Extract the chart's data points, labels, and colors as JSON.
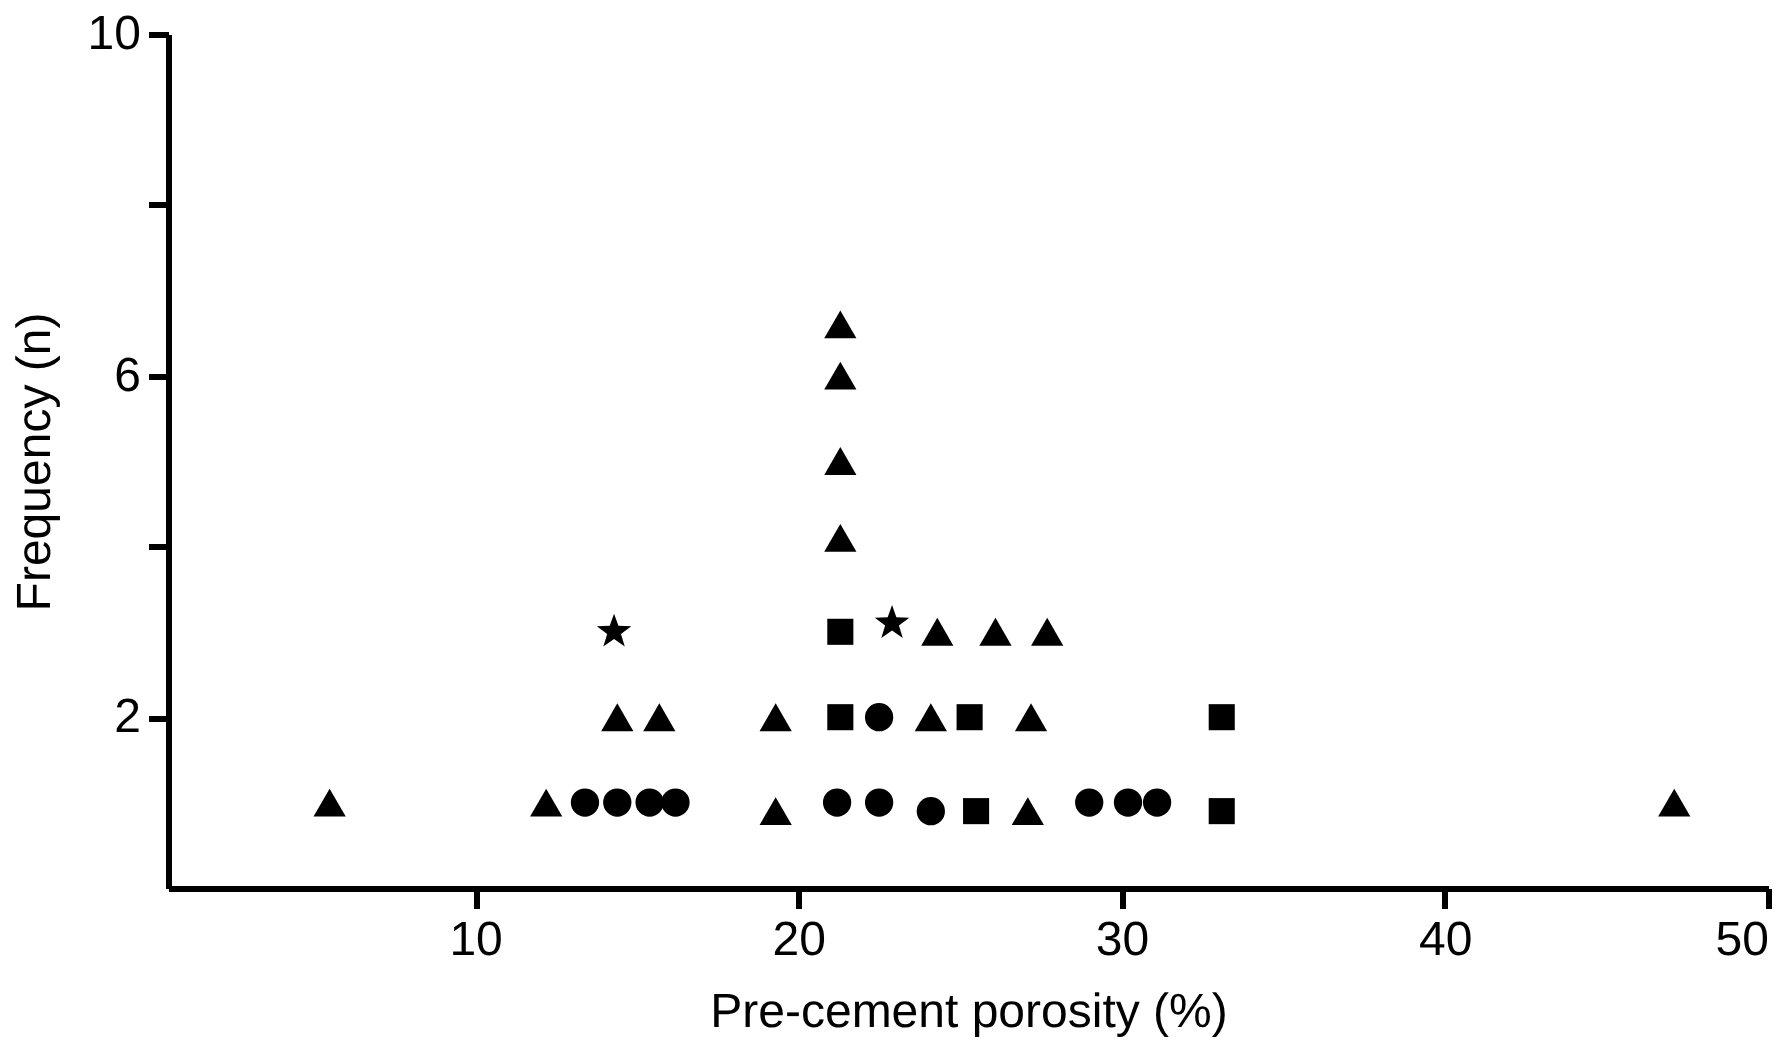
{
  "chart_data": {
    "type": "scatter",
    "xlabel": "Pre-cement porosity (%)",
    "ylabel": "Frequency (n)",
    "xlim": [
      0.5,
      50
    ],
    "xticks": [
      10,
      20,
      30,
      40,
      50
    ],
    "ylim": [
      0,
      10
    ],
    "yticks": [
      2,
      {
        "value": 4,
        "label": null
      },
      6,
      {
        "value": 8,
        "label": null
      },
      10
    ],
    "series": [
      {
        "marker": "triangle",
        "color": "#000000",
        "x": [
          5.5,
          12.2,
          19.3,
          27.1,
          47.1,
          14.4,
          15.7,
          19.3,
          24.1,
          27.2,
          24.3,
          26.1,
          27.7,
          21.3,
          21.3,
          21.3,
          21.3
        ],
        "values": [
          1,
          1,
          0.9,
          0.9,
          1,
          2,
          2,
          2,
          2,
          2,
          3,
          3,
          3,
          4.1,
          5,
          6,
          6.6
        ]
      },
      {
        "marker": "circle",
        "color": "#000000",
        "x": [
          13.4,
          14.4,
          15.4,
          16.2,
          21.2,
          22.5,
          24.1,
          29,
          30.2,
          31.1,
          22.5
        ],
        "values": [
          1,
          1,
          1,
          1,
          1,
          1,
          0.9,
          1,
          1,
          1,
          2
        ]
      },
      {
        "marker": "square",
        "color": "#000000",
        "x": [
          25.5,
          33.1,
          21.3,
          25.3,
          33.1,
          21.3
        ],
        "values": [
          0.9,
          0.9,
          2,
          2,
          2,
          3
        ]
      },
      {
        "marker": "star",
        "color": "#000000",
        "x": [
          14.3,
          22.9
        ],
        "values": [
          3,
          3.1
        ]
      }
    ]
  }
}
